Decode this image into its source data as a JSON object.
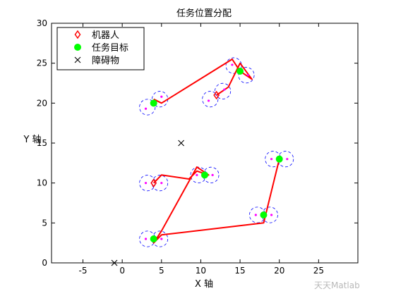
{
  "chart_data": {
    "type": "scatter",
    "title": "任务位置分配",
    "xlabel": "X 轴",
    "ylabel": "Y 轴",
    "xlim": [
      -9,
      30
    ],
    "ylim": [
      0,
      30
    ],
    "xticks": [
      -5,
      0,
      5,
      10,
      15,
      20,
      25
    ],
    "yticks": [
      0,
      5,
      10,
      15,
      20,
      25,
      30
    ],
    "grid": false,
    "legend": {
      "position": "top-left",
      "entries": [
        {
          "label": "机器人",
          "marker": "diamond",
          "color": "#ff0000"
        },
        {
          "label": "任务目标",
          "marker": "filled-circle",
          "color": "#00ff00"
        },
        {
          "label": "障碍物",
          "marker": "x",
          "color": "#000000"
        }
      ]
    },
    "series": [
      {
        "name": "机器人",
        "marker": "diamond",
        "color": "#ff0000",
        "points": [
          [
            4,
            10
          ],
          [
            12,
            21
          ]
        ]
      },
      {
        "name": "任务目标",
        "marker": "filled-circle",
        "color": "#00ff00",
        "points": [
          [
            4,
            3
          ],
          [
            4,
            20
          ],
          [
            10.5,
            11
          ],
          [
            15,
            24
          ],
          [
            18,
            6
          ],
          [
            20,
            13
          ]
        ]
      },
      {
        "name": "障碍物",
        "marker": "x",
        "color": "#000000",
        "points": [
          [
            7.5,
            15
          ],
          [
            -1,
            0
          ]
        ]
      }
    ],
    "paths": [
      {
        "color": "#ff0000",
        "points": [
          [
            4,
            10
          ],
          [
            5,
            11
          ],
          [
            8.5,
            10.5
          ],
          [
            9.5,
            11.5
          ],
          [
            11,
            11
          ],
          [
            9.5,
            12
          ],
          [
            5,
            4
          ],
          [
            4,
            2.5
          ],
          [
            5,
            3.5
          ],
          [
            18,
            5
          ],
          [
            20,
            13
          ]
        ]
      },
      {
        "color": "#ff0000",
        "points": [
          [
            12,
            21
          ],
          [
            13.5,
            22
          ],
          [
            15,
            25
          ],
          [
            16.5,
            23
          ],
          [
            15,
            24
          ],
          [
            14,
            25.5
          ],
          [
            5,
            20
          ],
          [
            4,
            20.5
          ]
        ]
      }
    ],
    "turning_circles": {
      "color": "#0000ff",
      "centers": [
        [
          3.2,
          3
        ],
        [
          4.8,
          3
        ],
        [
          3.2,
          10
        ],
        [
          4.8,
          10
        ],
        [
          3.2,
          19.5
        ],
        [
          4.8,
          20.5
        ],
        [
          9.7,
          11
        ],
        [
          11.3,
          11
        ],
        [
          11.2,
          20.5
        ],
        [
          12.8,
          21.5
        ],
        [
          14.2,
          24.7
        ],
        [
          15.8,
          23.5
        ],
        [
          17.2,
          6
        ],
        [
          18.8,
          6
        ],
        [
          19.2,
          13
        ],
        [
          20.8,
          13
        ]
      ]
    },
    "magenta_points": {
      "color": "#ff00ff",
      "points": [
        [
          3,
          3
        ],
        [
          5,
          3
        ],
        [
          3,
          10
        ],
        [
          5,
          10
        ],
        [
          3,
          19.3
        ],
        [
          5,
          20.8
        ],
        [
          9.5,
          11
        ],
        [
          11.5,
          11
        ],
        [
          11,
          20.3
        ],
        [
          13,
          21.7
        ],
        [
          14,
          24.8
        ],
        [
          16,
          23.5
        ],
        [
          17,
          6
        ],
        [
          19,
          6
        ],
        [
          19,
          13
        ],
        [
          21,
          13
        ]
      ]
    }
  },
  "watermark": "天天Matlab"
}
